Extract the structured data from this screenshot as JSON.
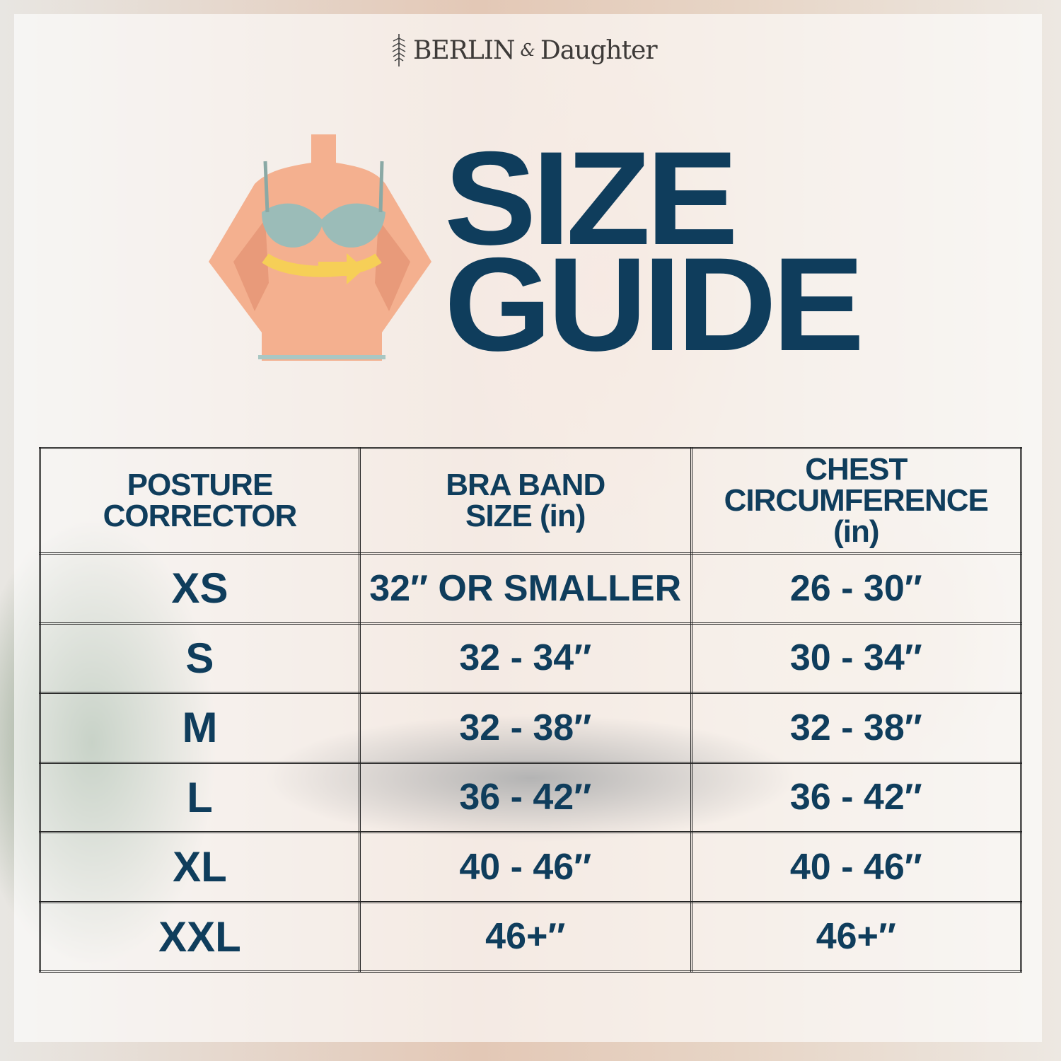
{
  "brand": {
    "name_left": "BERLIN",
    "ampersand": "&",
    "name_right": "Daughter",
    "icon": "feather-icon"
  },
  "title": {
    "line1": "SIZE",
    "line2": "GUIDE",
    "color": "#0f3d5c"
  },
  "illustration": {
    "icon": "torso-measurement-illustration"
  },
  "table": {
    "headers": [
      [
        "POSTURE",
        "CORRECTOR"
      ],
      [
        "BRA BAND",
        "SIZE (in)"
      ],
      [
        "CHEST",
        "CIRCUMFERENCE",
        "(in)"
      ]
    ],
    "rows": [
      [
        "XS",
        "32″ OR SMALLER",
        "26 - 30″"
      ],
      [
        "S",
        "32 - 34″",
        "30 - 34″"
      ],
      [
        "M",
        "32 - 38″",
        "32 - 38″"
      ],
      [
        "L",
        "36 - 42″",
        "36 - 42″"
      ],
      [
        "XL",
        "40 - 46″",
        "40 - 46″"
      ],
      [
        "XXL",
        "46+″",
        "46+″"
      ]
    ]
  }
}
